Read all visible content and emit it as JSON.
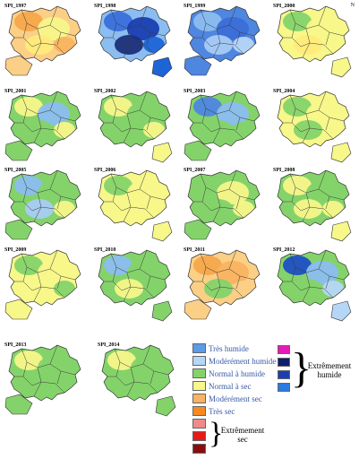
{
  "maps": [
    {
      "title": "SPI_1997",
      "colors": [
        "#fbcf86",
        "#f7a64b",
        "#f7f78a",
        "#ffeb7a",
        "#f9b360"
      ]
    },
    {
      "title": "SPI_1998",
      "colors": [
        "#8bbdf0",
        "#3a6fdb",
        "#1a3eb0",
        "#1c2e7a",
        "#1d64d6"
      ]
    },
    {
      "title": "SPI_1999",
      "colors": [
        "#4e86e0",
        "#8bbdf0",
        "#3b6ed6",
        "#a8cbf5",
        "#b6d6f7"
      ]
    },
    {
      "title": "SPI_2000",
      "colors": [
        "#f7f78a",
        "#84d36a",
        "#f7f78a",
        "#ffeb7a",
        "#f7f78a"
      ]
    },
    {
      "title": "SPI_2001",
      "colors": [
        "#84d36a",
        "#f7f78a",
        "#8bbdf0",
        "#84d36a",
        "#f7f78a"
      ]
    },
    {
      "title": "SPI_2002",
      "colors": [
        "#84d36a",
        "#f7f78a",
        "#84d36a",
        "#84d36a",
        "#f7f78a"
      ]
    },
    {
      "title": "SPI_2003",
      "colors": [
        "#84d36a",
        "#4e86e0",
        "#8bbdf0",
        "#84d36a",
        "#84d36a"
      ]
    },
    {
      "title": "SPI_2004",
      "colors": [
        "#f7f78a",
        "#84d36a",
        "#f7f78a",
        "#84d36a",
        "#f7f78a"
      ]
    },
    {
      "title": "SPI_2005",
      "colors": [
        "#84d36a",
        "#8bbdf0",
        "#84d36a",
        "#a8cbf5",
        "#f7f78a"
      ]
    },
    {
      "title": "SPI_2006",
      "colors": [
        "#f7f78a",
        "#84d36a",
        "#f7f78a",
        "#f7f78a",
        "#f7f78a"
      ]
    },
    {
      "title": "SPI_2007",
      "colors": [
        "#84d36a",
        "#84d36a",
        "#f7f78a",
        "#84d36a",
        "#f7f78a"
      ]
    },
    {
      "title": "SPI_2008",
      "colors": [
        "#84d36a",
        "#f7f78a",
        "#84d36a",
        "#f7f78a",
        "#f7f78a"
      ]
    },
    {
      "title": "SPI_2009",
      "colors": [
        "#f7f78a",
        "#84d36a",
        "#f7f78a",
        "#f7f78a",
        "#84d36a"
      ]
    },
    {
      "title": "SPI_2010",
      "colors": [
        "#84d36a",
        "#8bbdf0",
        "#84d36a",
        "#f7f78a",
        "#84d36a"
      ]
    },
    {
      "title": "SPI_2011",
      "colors": [
        "#fbcf86",
        "#f7a64b",
        "#f9b360",
        "#84d36a",
        "#fbcf86"
      ]
    },
    {
      "title": "SPI_2012",
      "colors": [
        "#84d36a",
        "#1d4fc4",
        "#8bbdf0",
        "#84d36a",
        "#b6d6f7"
      ]
    },
    {
      "title": "SPI_2013",
      "colors": [
        "#84d36a",
        "#f7f78a",
        "#84d36a",
        "#84d36a",
        "#84d36a"
      ]
    },
    {
      "title": "SPI_2014",
      "colors": [
        "#84d36a",
        "#f7f78a",
        "#84d36a",
        "#84d36a",
        "#84d36a"
      ]
    }
  ],
  "north_label": "N",
  "legend": {
    "items": [
      {
        "label": "Très humide",
        "color": "#5b9be8"
      },
      {
        "label": "Modérément humide",
        "color": "#b6d6f7"
      },
      {
        "label": "Normal à humide",
        "color": "#84d36a"
      },
      {
        "label": "Normal à sec",
        "color": "#f7f78a"
      },
      {
        "label": "Modérément sec",
        "color": "#f9b360"
      },
      {
        "label": "Très sec",
        "color": "#f58a1f"
      },
      {
        "label": "",
        "color": "#f08a8a"
      },
      {
        "label": "",
        "color": "#e51b1b"
      },
      {
        "label": "",
        "color": "#8a0d0d"
      }
    ],
    "extreme_wet": {
      "label": "Extrêmement humide",
      "colors": [
        "#e61ab8",
        "#0d1f6e",
        "#1a3fb0",
        "#2b7be0"
      ]
    },
    "extreme_dry": {
      "label": "Extrêmement sec"
    }
  }
}
